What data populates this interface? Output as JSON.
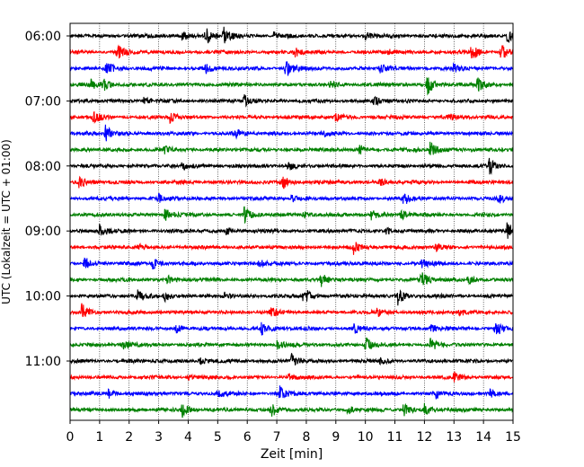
{
  "chart_data": {
    "type": "line",
    "title": "",
    "xlabel": "Zeit  [min]",
    "ylabel": "UTC (Lokalzeit = UTC + 01:00)",
    "xlim": [
      0,
      15
    ],
    "x_ticks": [
      "0",
      "1",
      "2",
      "3",
      "4",
      "5",
      "6",
      "7",
      "8",
      "9",
      "10",
      "11",
      "12",
      "13",
      "14",
      "15"
    ],
    "x_tick_values": [
      0,
      1,
      2,
      3,
      4,
      5,
      6,
      7,
      8,
      9,
      10,
      11,
      12,
      13,
      14,
      15
    ],
    "y_ticks": [
      "06:00",
      "07:00",
      "08:00",
      "09:00",
      "10:00",
      "11:00"
    ],
    "y_tick_rows": [
      0,
      4,
      8,
      12,
      16,
      20
    ],
    "grid": "vertical dotted lines at each minute",
    "trace_minutes": 15,
    "color_cycle": [
      "#000000",
      "#ff0000",
      "#0000ff",
      "#008000"
    ],
    "rows": [
      {
        "start": "06:00",
        "color": "#000000",
        "events": [
          [
            4.6,
            2.4
          ],
          [
            5.2,
            2.2
          ],
          [
            14.8,
            2.2
          ],
          [
            3.8,
            1.2
          ],
          [
            6.9,
            1.0
          ],
          [
            10.0,
            0.9
          ]
        ]
      },
      {
        "start": "06:15",
        "color": "#ff0000",
        "events": [
          [
            1.6,
            2.0
          ],
          [
            13.6,
            2.3
          ],
          [
            14.6,
            2.2
          ],
          [
            7.6,
            1.2
          ],
          [
            10.8,
            1.0
          ]
        ]
      },
      {
        "start": "06:30",
        "color": "#0000ff",
        "events": [
          [
            1.2,
            2.4
          ],
          [
            7.3,
            2.8
          ],
          [
            4.6,
            1.2
          ],
          [
            10.5,
            1.0
          ],
          [
            13.0,
            1.1
          ]
        ]
      },
      {
        "start": "06:45",
        "color": "#008000",
        "events": [
          [
            1.1,
            1.8
          ],
          [
            0.7,
            1.3
          ],
          [
            12.1,
            2.6
          ],
          [
            13.8,
            2.0
          ],
          [
            8.8,
            1.0
          ]
        ]
      },
      {
        "start": "07:00",
        "color": "#000000",
        "events": [
          [
            5.9,
            1.5
          ],
          [
            10.3,
            1.0
          ],
          [
            2.5,
            0.8
          ]
        ]
      },
      {
        "start": "07:15",
        "color": "#ff0000",
        "events": [
          [
            0.8,
            1.8
          ],
          [
            3.4,
            1.8
          ],
          [
            9.0,
            1.2
          ],
          [
            12.8,
            0.9
          ]
        ]
      },
      {
        "start": "07:30",
        "color": "#0000ff",
        "events": [
          [
            1.2,
            2.0
          ],
          [
            5.6,
            1.1
          ],
          [
            8.6,
            0.9
          ]
        ]
      },
      {
        "start": "07:45",
        "color": "#008000",
        "events": [
          [
            12.2,
            2.2
          ],
          [
            3.2,
            0.8
          ],
          [
            9.8,
            0.9
          ]
        ]
      },
      {
        "start": "08:00",
        "color": "#000000",
        "events": [
          [
            14.2,
            2.0
          ],
          [
            3.8,
            0.9
          ],
          [
            7.4,
            1.0
          ]
        ]
      },
      {
        "start": "08:15",
        "color": "#ff0000",
        "events": [
          [
            0.3,
            1.3
          ],
          [
            7.2,
            1.8
          ],
          [
            10.5,
            0.9
          ]
        ]
      },
      {
        "start": "08:30",
        "color": "#0000ff",
        "events": [
          [
            11.3,
            1.6
          ],
          [
            14.5,
            1.2
          ],
          [
            3.0,
            1.0
          ],
          [
            7.5,
            0.9
          ]
        ]
      },
      {
        "start": "08:45",
        "color": "#008000",
        "events": [
          [
            3.2,
            1.8
          ],
          [
            5.9,
            2.0
          ],
          [
            10.2,
            1.4
          ],
          [
            11.2,
            1.3
          ],
          [
            7.9,
            1.1
          ]
        ]
      },
      {
        "start": "09:00",
        "color": "#000000",
        "events": [
          [
            1.0,
            1.5
          ],
          [
            14.8,
            2.2
          ],
          [
            5.3,
            0.9
          ],
          [
            10.7,
            0.9
          ]
        ]
      },
      {
        "start": "09:15",
        "color": "#ff0000",
        "events": [
          [
            9.6,
            1.6
          ],
          [
            2.3,
            0.8
          ],
          [
            12.4,
            0.8
          ]
        ]
      },
      {
        "start": "09:30",
        "color": "#0000ff",
        "events": [
          [
            0.5,
            1.6
          ],
          [
            2.8,
            1.4
          ],
          [
            6.4,
            1.0
          ],
          [
            11.9,
            1.0
          ]
        ]
      },
      {
        "start": "09:45",
        "color": "#008000",
        "events": [
          [
            11.9,
            2.3
          ],
          [
            8.5,
            1.8
          ],
          [
            13.5,
            1.2
          ],
          [
            3.3,
            1.0
          ]
        ]
      },
      {
        "start": "10:00",
        "color": "#000000",
        "events": [
          [
            2.3,
            1.8
          ],
          [
            3.2,
            1.5
          ],
          [
            7.9,
            2.8
          ],
          [
            11.1,
            2.2
          ],
          [
            5.2,
            1.0
          ]
        ]
      },
      {
        "start": "10:15",
        "color": "#ff0000",
        "events": [
          [
            0.4,
            2.4
          ],
          [
            6.8,
            1.3
          ],
          [
            10.4,
            1.0
          ],
          [
            13.2,
            0.9
          ]
        ]
      },
      {
        "start": "10:30",
        "color": "#0000ff",
        "events": [
          [
            6.5,
            2.2
          ],
          [
            14.4,
            2.2
          ],
          [
            9.6,
            1.4
          ],
          [
            3.6,
            1.3
          ],
          [
            12.2,
            1.1
          ]
        ]
      },
      {
        "start": "10:45",
        "color": "#008000",
        "events": [
          [
            10.0,
            2.1
          ],
          [
            12.2,
            1.6
          ],
          [
            1.8,
            1.0
          ],
          [
            7.0,
            1.1
          ]
        ]
      },
      {
        "start": "11:00",
        "color": "#000000",
        "events": [
          [
            7.5,
            1.6
          ],
          [
            4.4,
            0.7
          ],
          [
            10.5,
            0.7
          ]
        ]
      },
      {
        "start": "11:15",
        "color": "#ff0000",
        "events": [
          [
            13.0,
            1.2
          ],
          [
            4.0,
            0.8
          ],
          [
            7.4,
            0.8
          ]
        ]
      },
      {
        "start": "11:30",
        "color": "#0000ff",
        "events": [
          [
            7.1,
            1.8
          ],
          [
            1.3,
            1.2
          ],
          [
            14.2,
            1.4
          ],
          [
            12.4,
            1.2
          ],
          [
            5.0,
            0.9
          ]
        ]
      },
      {
        "start": "11:45",
        "color": "#008000",
        "events": [
          [
            3.8,
            2.1
          ],
          [
            6.8,
            2.0
          ],
          [
            11.3,
            1.6
          ],
          [
            12.0,
            1.5
          ],
          [
            9.4,
            1.2
          ]
        ]
      }
    ]
  }
}
